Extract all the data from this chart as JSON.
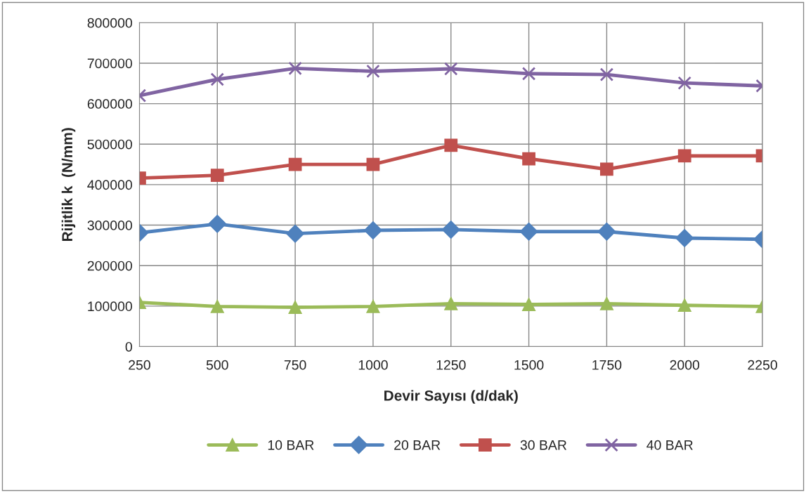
{
  "chart_data": {
    "type": "line",
    "xlabel": "Devir Sayısı (d/dak)",
    "ylabel": "Rijitlik k  (N/mm)",
    "x": [
      250,
      500,
      750,
      1000,
      1250,
      1500,
      1750,
      2000,
      2250
    ],
    "xlim": [
      250,
      2250
    ],
    "xticks": [
      250,
      500,
      750,
      1000,
      1250,
      1500,
      1750,
      2000,
      2250
    ],
    "ylim": [
      0,
      800000
    ],
    "yticks": [
      0,
      100000,
      200000,
      300000,
      400000,
      500000,
      600000,
      700000,
      800000
    ],
    "grid": true,
    "legend": "bottom",
    "series": [
      {
        "name": "10 BAR",
        "color": "#9bbb59",
        "marker": "triangle",
        "values": [
          109000,
          99000,
          97000,
          99000,
          106000,
          104000,
          106000,
          102000,
          99000
        ]
      },
      {
        "name": "20 BAR",
        "color": "#4f81bd",
        "marker": "diamond",
        "values": [
          281000,
          303000,
          279000,
          287000,
          289000,
          284000,
          284000,
          268000,
          265000
        ]
      },
      {
        "name": "30 BAR",
        "color": "#c0504d",
        "marker": "square",
        "values": [
          416000,
          423000,
          450000,
          450000,
          497000,
          464000,
          438000,
          471000,
          471000
        ]
      },
      {
        "name": "40 BAR",
        "color": "#8064a2",
        "marker": "cross",
        "values": [
          620000,
          660000,
          687000,
          680000,
          686000,
          674000,
          672000,
          651000,
          644000
        ]
      }
    ]
  }
}
